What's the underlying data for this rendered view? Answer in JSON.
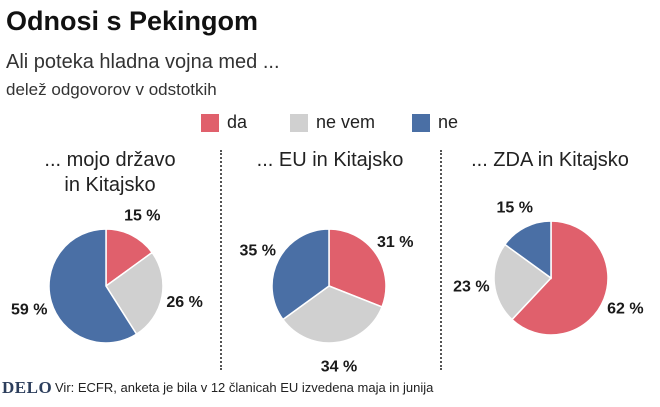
{
  "header": {
    "title": "Odnosi s Pekingom",
    "subtitle": "Ali poteka hladna vojna med ...",
    "note": "delež odgovorov v odstotkih"
  },
  "legend": [
    {
      "label": "da",
      "color": "#e0606c"
    },
    {
      "label": "ne vem",
      "color": "#d0d0d0"
    },
    {
      "label": "ne",
      "color": "#4a6fa5"
    }
  ],
  "chart_data": [
    {
      "type": "pie",
      "title": "... mojo državo in Kitajsko",
      "title_lines": [
        "... mojo državo",
        "in Kitajsko"
      ],
      "slices": [
        {
          "category": "da",
          "value": 15,
          "label": "15 %"
        },
        {
          "category": "ne vem",
          "value": 26,
          "label": "26 %"
        },
        {
          "category": "ne",
          "value": 59,
          "label": "59 %"
        }
      ]
    },
    {
      "type": "pie",
      "title": "... EU in Kitajsko",
      "title_lines": [
        "... EU in Kitajsko"
      ],
      "slices": [
        {
          "category": "da",
          "value": 31,
          "label": "31 %"
        },
        {
          "category": "ne vem",
          "value": 34,
          "label": "34 %"
        },
        {
          "category": "ne",
          "value": 35,
          "label": "35 %"
        }
      ]
    },
    {
      "type": "pie",
      "title": "... ZDA in Kitajsko",
      "title_lines": [
        "... ZDA in Kitajsko"
      ],
      "slices": [
        {
          "category": "da",
          "value": 62,
          "label": "62 %"
        },
        {
          "category": "ne vem",
          "value": 23,
          "label": "23 %"
        },
        {
          "category": "ne",
          "value": 15,
          "label": "15 %"
        }
      ]
    }
  ],
  "footer": {
    "logo": "DELO",
    "source": "Vir: ECFR, anketa je bila v 12 članicah EU izvedena maja in junija"
  }
}
